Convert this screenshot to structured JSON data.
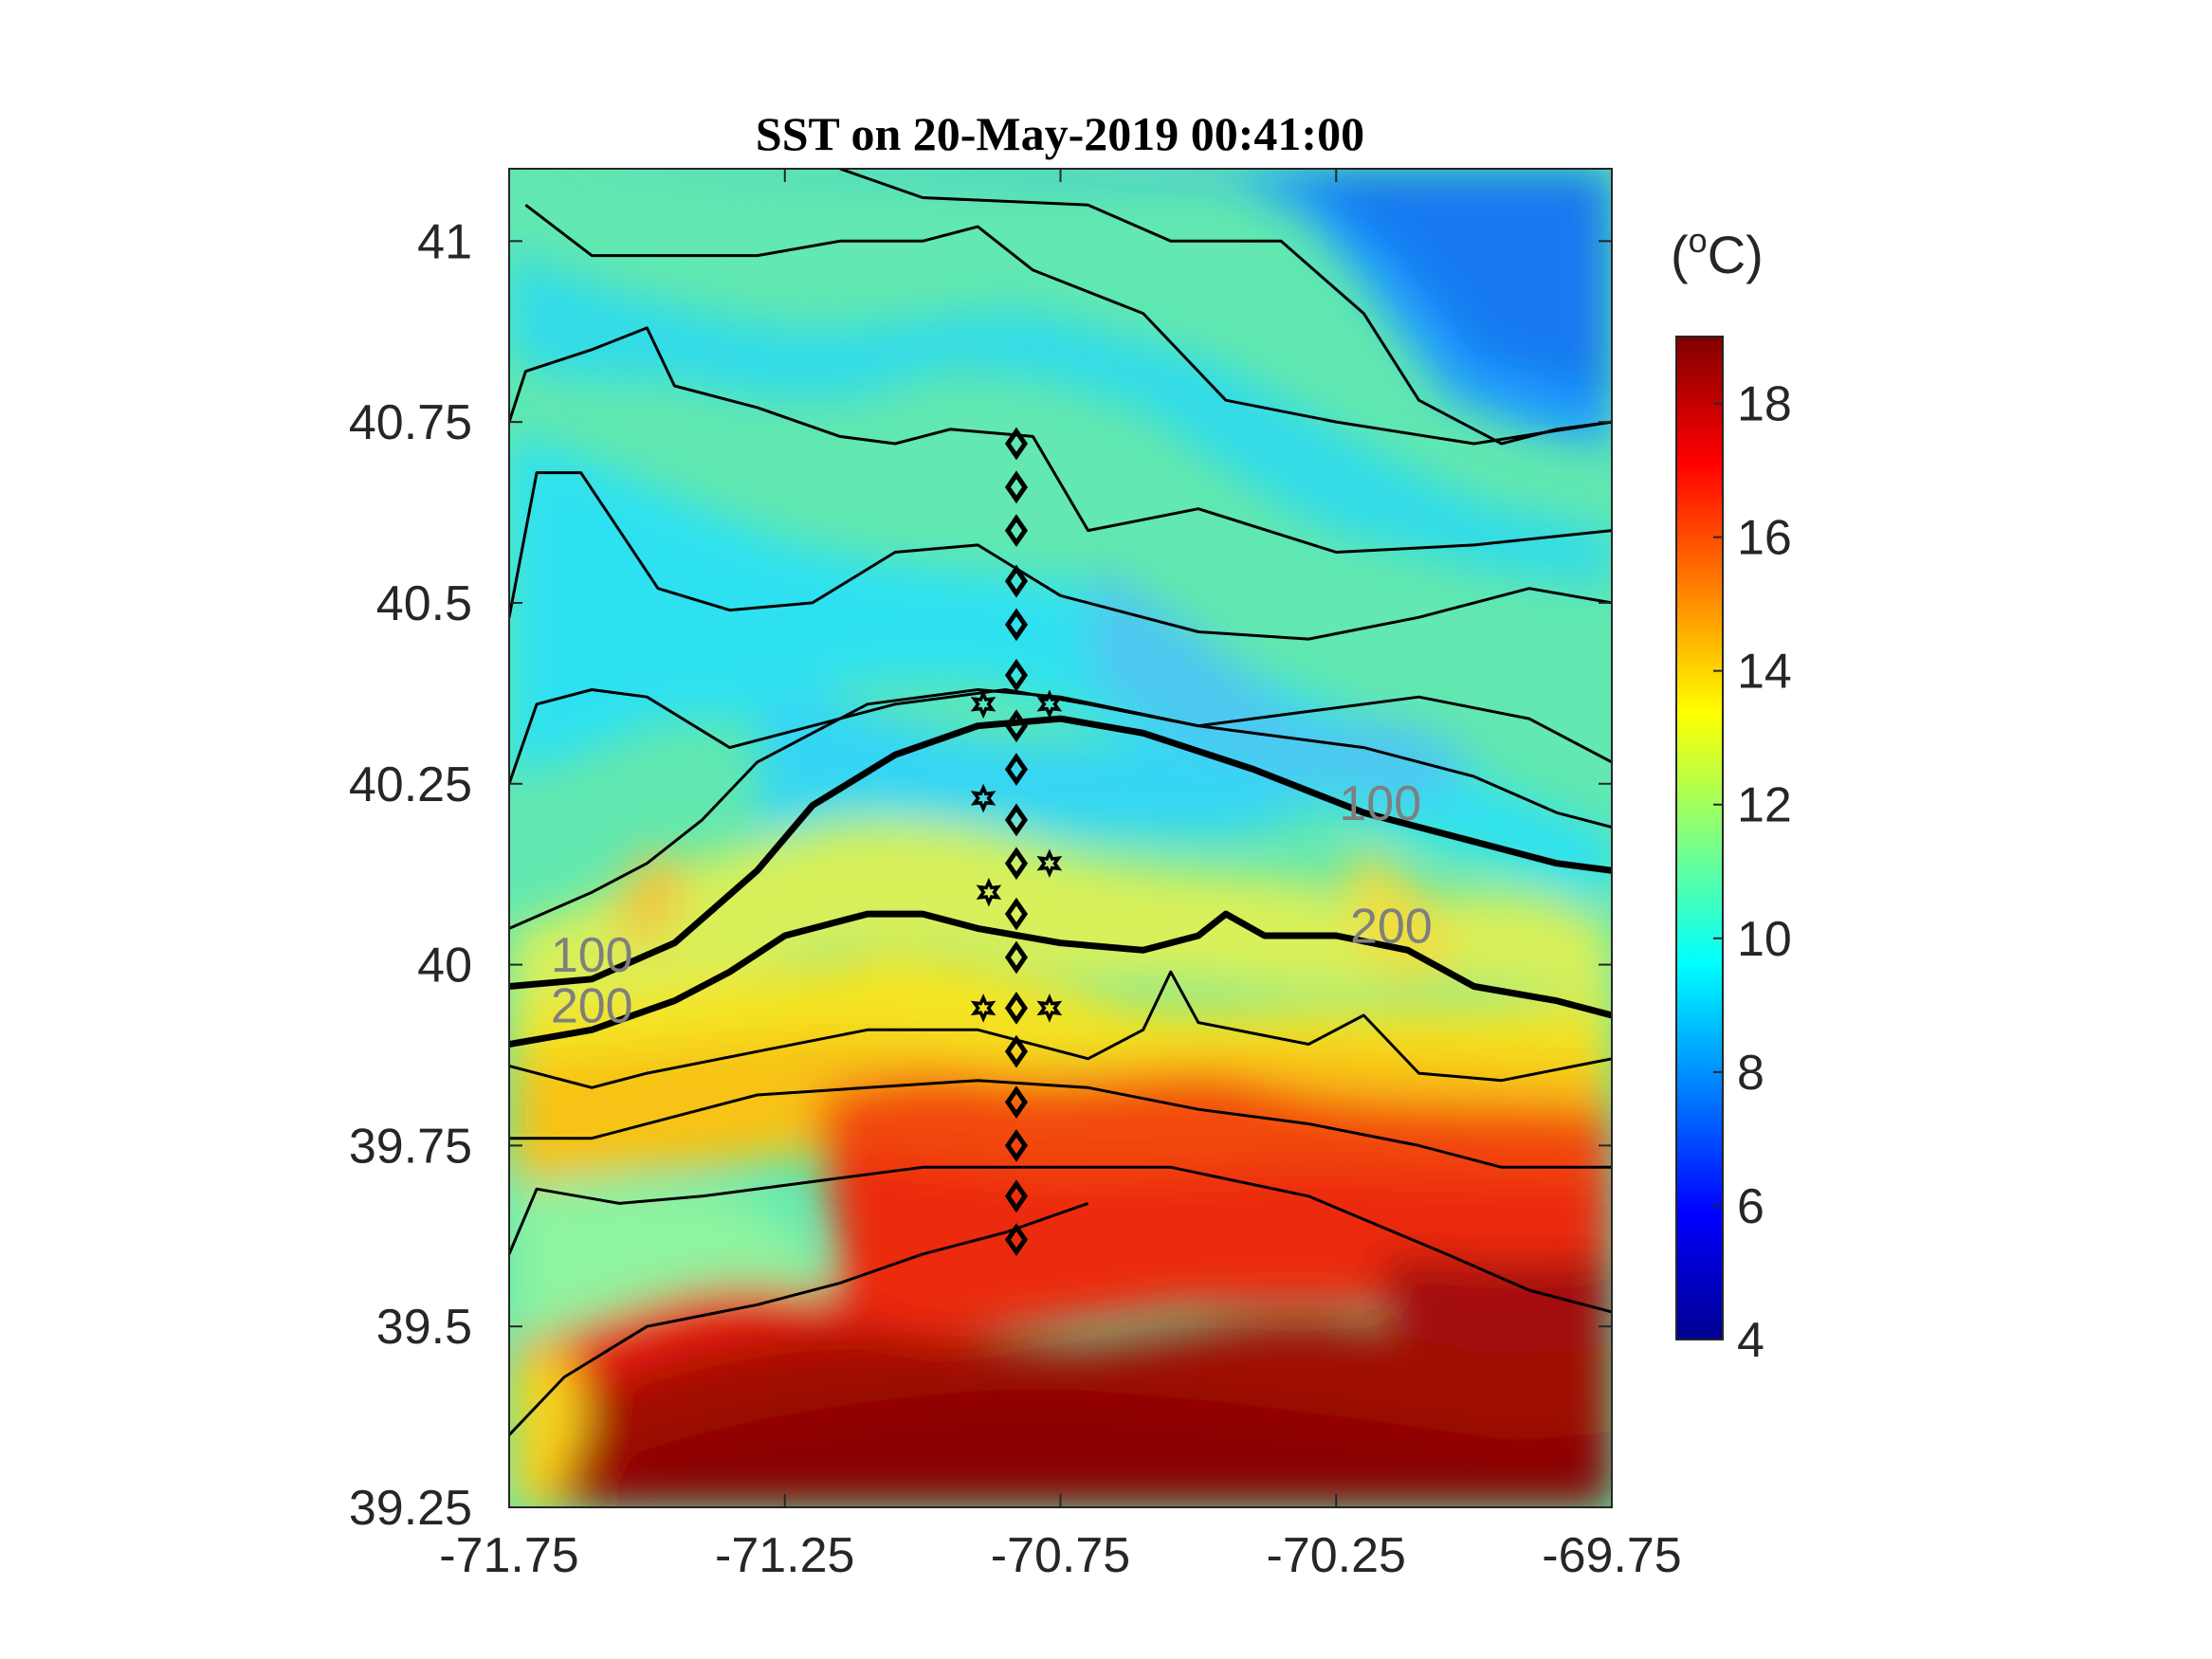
{
  "chart_data": {
    "type": "heatmap",
    "title": "SST on 20-May-2019 00:41:00",
    "xlim": [
      -71.75,
      -69.75
    ],
    "ylim": [
      39.25,
      41.1
    ],
    "x_ticks": [
      "-71.75",
      "-71.25",
      "-70.75",
      "-70.25",
      "-69.75"
    ],
    "x_tick_values": [
      -71.75,
      -71.25,
      -70.75,
      -70.25,
      -69.75
    ],
    "y_ticks": [
      "41",
      "40.75",
      "40.5",
      "40.25",
      "40",
      "39.75",
      "39.5",
      "39.25"
    ],
    "y_tick_values": [
      41,
      40.75,
      40.5,
      40.25,
      40,
      39.75,
      39.5,
      39.25
    ],
    "colorbar": {
      "label_base": "(",
      "label_sup": "o",
      "label_end": "C)",
      "clim": [
        4,
        19
      ],
      "ticks": [
        "4",
        "6",
        "8",
        "10",
        "12",
        "14",
        "16",
        "18"
      ],
      "tick_values": [
        4,
        6,
        8,
        10,
        12,
        14,
        16,
        18
      ],
      "colormap": "jet"
    },
    "contour_labels": [
      {
        "text": "100",
        "lon": -71.6,
        "lat": 39.99
      },
      {
        "text": "200",
        "lon": -71.6,
        "lat": 39.92
      },
      {
        "text": "100",
        "lon": -70.17,
        "lat": 40.2
      },
      {
        "text": "200",
        "lon": -70.15,
        "lat": 40.03
      }
    ],
    "isobaths": [
      {
        "depth": "100",
        "emphasis": true,
        "points": [
          [
            -71.75,
            39.97
          ],
          [
            -71.6,
            39.98
          ],
          [
            -71.45,
            40.03
          ],
          [
            -71.3,
            40.13
          ],
          [
            -71.2,
            40.22
          ],
          [
            -71.05,
            40.29
          ],
          [
            -70.9,
            40.33
          ],
          [
            -70.75,
            40.34
          ],
          [
            -70.6,
            40.32
          ],
          [
            -70.4,
            40.27
          ],
          [
            -70.2,
            40.21
          ],
          [
            -70.0,
            40.17
          ],
          [
            -69.85,
            40.14
          ],
          [
            -69.75,
            40.13
          ]
        ]
      },
      {
        "depth": "200",
        "emphasis": true,
        "points": [
          [
            -71.75,
            39.89
          ],
          [
            -71.6,
            39.91
          ],
          [
            -71.45,
            39.95
          ],
          [
            -71.35,
            39.99
          ],
          [
            -71.25,
            40.04
          ],
          [
            -71.1,
            40.07
          ],
          [
            -71.0,
            40.07
          ],
          [
            -70.9,
            40.05
          ],
          [
            -70.75,
            40.03
          ],
          [
            -70.6,
            40.02
          ],
          [
            -70.5,
            40.04
          ],
          [
            -70.45,
            40.07
          ],
          [
            -70.38,
            40.04
          ],
          [
            -70.25,
            40.04
          ],
          [
            -70.12,
            40.02
          ],
          [
            -70.0,
            39.97
          ],
          [
            -69.85,
            39.95
          ],
          [
            -69.75,
            39.93
          ]
        ]
      },
      {
        "depth": "",
        "emphasis": false,
        "points": [
          [
            -71.75,
            40.05
          ],
          [
            -71.6,
            40.1
          ],
          [
            -71.5,
            40.14
          ],
          [
            -71.4,
            40.2
          ],
          [
            -71.3,
            40.28
          ],
          [
            -71.1,
            40.36
          ],
          [
            -70.9,
            40.38
          ],
          [
            -70.75,
            40.37
          ],
          [
            -70.5,
            40.33
          ],
          [
            -70.2,
            40.3
          ],
          [
            -70.0,
            40.26
          ],
          [
            -69.85,
            40.21
          ],
          [
            -69.75,
            40.19
          ]
        ]
      },
      {
        "depth": "",
        "emphasis": false,
        "points": [
          [
            -71.75,
            40.25
          ],
          [
            -71.7,
            40.36
          ],
          [
            -71.6,
            40.38
          ],
          [
            -71.5,
            40.37
          ],
          [
            -71.35,
            40.3
          ],
          [
            -71.2,
            40.33
          ],
          [
            -71.05,
            40.36
          ],
          [
            -70.85,
            40.38
          ],
          [
            -70.7,
            40.36
          ],
          [
            -70.5,
            40.33
          ],
          [
            -70.3,
            40.35
          ],
          [
            -70.1,
            40.37
          ],
          [
            -69.9,
            40.34
          ],
          [
            -69.75,
            40.28
          ]
        ]
      },
      {
        "depth": "",
        "emphasis": false,
        "points": [
          [
            -71.75,
            40.48
          ],
          [
            -71.7,
            40.68
          ],
          [
            -71.62,
            40.68
          ],
          [
            -71.55,
            40.6
          ],
          [
            -71.48,
            40.52
          ],
          [
            -71.35,
            40.49
          ],
          [
            -71.2,
            40.5
          ],
          [
            -71.05,
            40.57
          ],
          [
            -70.9,
            40.58
          ],
          [
            -70.75,
            40.51
          ],
          [
            -70.5,
            40.46
          ],
          [
            -70.3,
            40.45
          ],
          [
            -70.1,
            40.48
          ],
          [
            -69.9,
            40.52
          ],
          [
            -69.75,
            40.5
          ]
        ]
      },
      {
        "depth": "",
        "emphasis": false,
        "points": [
          [
            -71.75,
            40.75
          ],
          [
            -71.72,
            40.82
          ],
          [
            -71.6,
            40.85
          ],
          [
            -71.5,
            40.88
          ],
          [
            -71.45,
            40.8
          ],
          [
            -71.3,
            40.77
          ],
          [
            -71.15,
            40.73
          ],
          [
            -71.05,
            40.72
          ],
          [
            -70.95,
            40.74
          ],
          [
            -70.8,
            40.73
          ],
          [
            -70.7,
            40.6
          ],
          [
            -70.5,
            40.63
          ],
          [
            -70.25,
            40.57
          ],
          [
            -70.0,
            40.58
          ],
          [
            -69.75,
            40.6
          ]
        ]
      },
      {
        "depth": "",
        "emphasis": false,
        "points": [
          [
            -71.72,
            41.05
          ],
          [
            -71.6,
            40.98
          ],
          [
            -71.45,
            40.98
          ],
          [
            -71.3,
            40.98
          ],
          [
            -71.15,
            41.0
          ],
          [
            -71.0,
            41.0
          ],
          [
            -70.9,
            41.02
          ],
          [
            -70.8,
            40.96
          ],
          [
            -70.6,
            40.9
          ],
          [
            -70.45,
            40.78
          ],
          [
            -70.25,
            40.75
          ],
          [
            -70.0,
            40.72
          ],
          [
            -69.75,
            40.75
          ]
        ]
      },
      {
        "depth": "",
        "emphasis": false,
        "points": [
          [
            -71.15,
            41.1
          ],
          [
            -71.0,
            41.06
          ],
          [
            -70.7,
            41.05
          ],
          [
            -70.55,
            41.0
          ],
          [
            -70.35,
            41.0
          ],
          [
            -70.2,
            40.9
          ],
          [
            -70.1,
            40.78
          ],
          [
            -69.95,
            40.72
          ],
          [
            -69.85,
            40.74
          ],
          [
            -69.75,
            40.75
          ]
        ]
      },
      {
        "depth": "",
        "emphasis": false,
        "points": [
          [
            -71.75,
            39.86
          ],
          [
            -71.6,
            39.83
          ],
          [
            -71.5,
            39.85
          ],
          [
            -71.3,
            39.88
          ],
          [
            -71.1,
            39.91
          ],
          [
            -70.9,
            39.91
          ],
          [
            -70.7,
            39.87
          ],
          [
            -70.6,
            39.91
          ],
          [
            -70.55,
            39.99
          ],
          [
            -70.5,
            39.92
          ],
          [
            -70.3,
            39.89
          ],
          [
            -70.2,
            39.93
          ],
          [
            -70.1,
            39.85
          ],
          [
            -69.95,
            39.84
          ],
          [
            -69.75,
            39.87
          ]
        ]
      },
      {
        "depth": "",
        "emphasis": false,
        "points": [
          [
            -71.75,
            39.76
          ],
          [
            -71.6,
            39.76
          ],
          [
            -71.45,
            39.79
          ],
          [
            -71.3,
            39.82
          ],
          [
            -71.1,
            39.83
          ],
          [
            -70.9,
            39.84
          ],
          [
            -70.7,
            39.83
          ],
          [
            -70.5,
            39.8
          ],
          [
            -70.3,
            39.78
          ],
          [
            -70.1,
            39.75
          ],
          [
            -69.95,
            39.72
          ],
          [
            -69.75,
            39.72
          ]
        ]
      },
      {
        "depth": "",
        "emphasis": false,
        "points": [
          [
            -71.75,
            39.6
          ],
          [
            -71.7,
            39.69
          ],
          [
            -71.55,
            39.67
          ],
          [
            -71.4,
            39.68
          ],
          [
            -71.2,
            39.7
          ],
          [
            -71.0,
            39.72
          ],
          [
            -70.8,
            39.72
          ],
          [
            -70.55,
            39.72
          ],
          [
            -70.3,
            39.68
          ],
          [
            -70.05,
            39.6
          ],
          [
            -69.9,
            39.55
          ],
          [
            -69.75,
            39.52
          ]
        ]
      },
      {
        "depth": "",
        "emphasis": false,
        "points": [
          [
            -71.75,
            39.35
          ],
          [
            -71.65,
            39.43
          ],
          [
            -71.5,
            39.5
          ],
          [
            -71.3,
            39.53
          ],
          [
            -71.15,
            39.56
          ],
          [
            -71.0,
            39.6
          ],
          [
            -70.85,
            39.63
          ],
          [
            -70.7,
            39.67
          ]
        ]
      }
    ],
    "stations_diamond": {
      "lon": -70.83,
      "lat": [
        40.72,
        40.66,
        40.6,
        40.53,
        40.47,
        40.4,
        40.33,
        40.27,
        40.2,
        40.14,
        40.07,
        40.01,
        39.94,
        39.88,
        39.81,
        39.75,
        39.68,
        39.62
      ]
    },
    "stations_star": [
      {
        "lon": -70.89,
        "lat": 40.36
      },
      {
        "lon": -70.77,
        "lat": 40.36
      },
      {
        "lon": -70.89,
        "lat": 40.23
      },
      {
        "lon": -70.88,
        "lat": 40.1
      },
      {
        "lon": -70.77,
        "lat": 40.14
      },
      {
        "lon": -70.89,
        "lat": 39.94
      },
      {
        "lon": -70.77,
        "lat": 39.94
      }
    ]
  }
}
